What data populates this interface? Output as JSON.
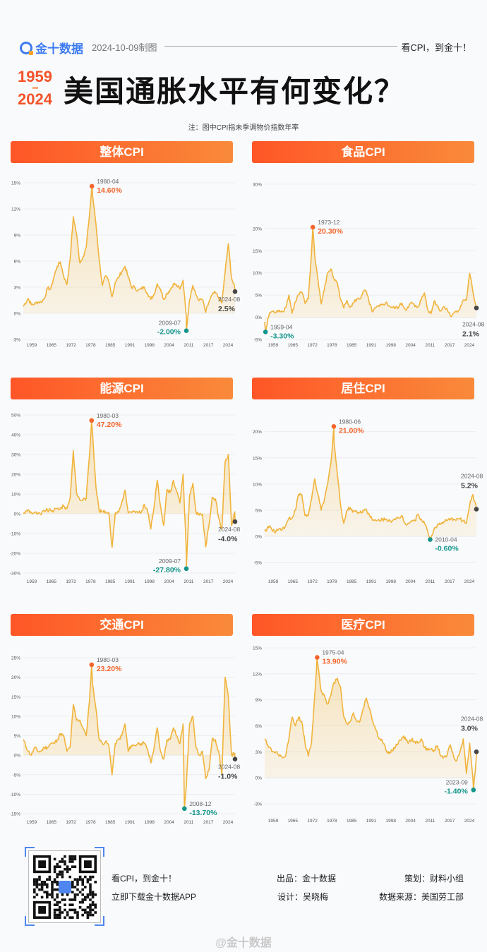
{
  "header": {
    "brand": "金十数据",
    "date": "2024-10-09制图",
    "slogan": "看CPI，到金十！"
  },
  "title": {
    "year_start": "1959",
    "year_end": "2024",
    "text": "美国通胀水平有何变化？",
    "note": "注：图中CPI指未季调物价指数年率"
  },
  "colors": {
    "line": "#f0b43c",
    "header_start": "#ff5627",
    "header_end": "#f98a3a",
    "max": "#f4652b",
    "min": "#13958a",
    "latest": "#444444",
    "brand": "#3d7bf0"
  },
  "chart_data": [
    {
      "title": "整体CPI",
      "type": "area",
      "x_ticks": [
        "1959",
        "1965",
        "1972",
        "1978",
        "1985",
        "1991",
        "1998",
        "2004",
        "2011",
        "2017",
        "2024"
      ],
      "y_ticks": [
        {
          "v": -3,
          "label": "-3%"
        },
        {
          "v": 0,
          "label": "0%"
        },
        {
          "v": 3,
          "label": "3%"
        },
        {
          "v": 6,
          "label": "6%"
        },
        {
          "v": 9,
          "label": "9%"
        },
        {
          "v": 12,
          "label": "12%"
        },
        {
          "v": 15,
          "label": "15%"
        }
      ],
      "ylim": [
        -3,
        15
      ],
      "grid": true,
      "x": [
        1959,
        1960,
        1961,
        1962,
        1963,
        1964,
        1965,
        1966,
        1967,
        1968,
        1969,
        1970,
        1971,
        1972,
        1973,
        1974,
        1975,
        1976,
        1977,
        1978,
        1979,
        1980,
        1981,
        1982,
        1983,
        1984,
        1985,
        1986,
        1987,
        1988,
        1989,
        1990,
        1991,
        1992,
        1993,
        1994,
        1995,
        1996,
        1997,
        1998,
        1999,
        2000,
        2001,
        2002,
        2003,
        2004,
        2005,
        2006,
        2007,
        2008,
        2009,
        2010,
        2011,
        2012,
        2013,
        2014,
        2015,
        2016,
        2017,
        2018,
        2019,
        2020,
        2021,
        2022,
        2023,
        2024
      ],
      "y": [
        0.8,
        1.7,
        1.0,
        1.1,
        1.3,
        1.3,
        1.7,
        2.9,
        2.8,
        4.2,
        5.4,
        5.9,
        4.3,
        3.3,
        6.2,
        11.1,
        9.1,
        5.8,
        6.5,
        7.6,
        11.3,
        13.5,
        10.3,
        6.2,
        3.2,
        4.3,
        3.6,
        1.9,
        3.6,
        4.1,
        4.8,
        5.4,
        4.2,
        3.0,
        3.0,
        2.6,
        2.8,
        3.0,
        2.3,
        1.6,
        2.2,
        3.4,
        2.8,
        1.6,
        2.3,
        2.7,
        3.4,
        3.2,
        2.8,
        3.8,
        -0.4,
        1.6,
        3.2,
        2.1,
        1.5,
        1.6,
        0.1,
        1.3,
        2.1,
        2.4,
        1.8,
        1.2,
        4.7,
        8.0,
        4.1,
        2.9
      ],
      "annotations": [
        {
          "kind": "max",
          "date": "1980-04",
          "value": 14.6,
          "text": "14.60%"
        },
        {
          "kind": "min",
          "date": "2009-07",
          "value": -2.0,
          "text": "-2.00%"
        },
        {
          "kind": "latest",
          "date": "2024-08",
          "value": 2.5,
          "text": "2.5%"
        }
      ]
    },
    {
      "title": "食品CPI",
      "type": "area",
      "x_ticks": [
        "1959",
        "1965",
        "1972",
        "1978",
        "1985",
        "1991",
        "1998",
        "2004",
        "2011",
        "2017",
        "2024"
      ],
      "y_ticks": [
        {
          "v": -5,
          "label": "-5%"
        },
        {
          "v": 0,
          "label": "0%"
        },
        {
          "v": 5,
          "label": "5%"
        },
        {
          "v": 10,
          "label": "10%"
        },
        {
          "v": 15,
          "label": "15%"
        },
        {
          "v": 20,
          "label": "20%"
        },
        {
          "v": 30,
          "label": "30%"
        }
      ],
      "ylim": [
        -5,
        30
      ],
      "grid": true,
      "x": [
        1959,
        1960,
        1961,
        1962,
        1963,
        1964,
        1965,
        1966,
        1967,
        1968,
        1969,
        1970,
        1971,
        1972,
        1973,
        1974,
        1975,
        1976,
        1977,
        1978,
        1979,
        1980,
        1981,
        1982,
        1983,
        1984,
        1985,
        1986,
        1987,
        1988,
        1989,
        1990,
        1991,
        1992,
        1993,
        1994,
        1995,
        1996,
        1997,
        1998,
        1999,
        2000,
        2001,
        2002,
        2003,
        2004,
        2005,
        2006,
        2007,
        2008,
        2009,
        2010,
        2011,
        2012,
        2013,
        2014,
        2015,
        2016,
        2017,
        2018,
        2019,
        2020,
        2021,
        2022,
        2023,
        2024
      ],
      "y": [
        -1.0,
        1.0,
        1.3,
        1.0,
        1.6,
        1.3,
        2.2,
        5.0,
        0.9,
        3.5,
        5.1,
        5.7,
        3.1,
        4.2,
        14.5,
        14.0,
        8.5,
        3.0,
        6.3,
        10.0,
        10.9,
        8.6,
        7.8,
        4.1,
        2.1,
        3.8,
        2.3,
        3.2,
        4.1,
        4.1,
        5.8,
        5.8,
        2.9,
        1.2,
        2.2,
        2.4,
        2.8,
        3.3,
        2.6,
        2.2,
        2.1,
        2.3,
        3.2,
        1.8,
        2.2,
        3.4,
        2.4,
        2.4,
        4.0,
        5.5,
        1.8,
        0.8,
        3.7,
        2.6,
        1.4,
        2.4,
        1.9,
        0.3,
        0.9,
        1.4,
        1.9,
        3.9,
        3.9,
        9.9,
        5.8,
        2.3
      ],
      "annotations": [
        {
          "kind": "max",
          "date": "1973-12",
          "value": 20.3,
          "text": "20.30%"
        },
        {
          "kind": "min",
          "date": "1959-04",
          "value": -3.3,
          "text": "-3.30%"
        },
        {
          "kind": "latest",
          "date": "2024-08",
          "value": 2.1,
          "text": "2.1%"
        }
      ]
    },
    {
      "title": "能源CPI",
      "type": "area",
      "x_ticks": [
        "1959",
        "1965",
        "1972",
        "1978",
        "1985",
        "1991",
        "1998",
        "2004",
        "2011",
        "2017",
        "2024"
      ],
      "y_ticks": [
        {
          "v": -30,
          "label": "-30%"
        },
        {
          "v": -20,
          "label": "-20%"
        },
        {
          "v": -10,
          "label": "-10%"
        },
        {
          "v": 0,
          "label": "0%"
        },
        {
          "v": 10,
          "label": "10%"
        },
        {
          "v": 20,
          "label": "20%"
        },
        {
          "v": 30,
          "label": "30%"
        },
        {
          "v": 40,
          "label": "40%"
        },
        {
          "v": 50,
          "label": "50%"
        }
      ],
      "ylim": [
        -30,
        50
      ],
      "grid": true,
      "x": [
        1959,
        1960,
        1961,
        1962,
        1963,
        1964,
        1965,
        1966,
        1967,
        1968,
        1969,
        1970,
        1971,
        1972,
        1973,
        1974,
        1975,
        1976,
        1977,
        1978,
        1979,
        1980,
        1981,
        1982,
        1983,
        1984,
        1985,
        1986,
        1987,
        1988,
        1989,
        1990,
        1991,
        1992,
        1993,
        1994,
        1995,
        1996,
        1997,
        1998,
        1999,
        2000,
        2001,
        2002,
        2003,
        2004,
        2005,
        2006,
        2007,
        2008,
        2009,
        2010,
        2011,
        2012,
        2013,
        2014,
        2015,
        2016,
        2017,
        2018,
        2019,
        2020,
        2021,
        2022,
        2023,
        2024
      ],
      "y": [
        0,
        2,
        0.5,
        0.5,
        0,
        -0.5,
        1.8,
        1.7,
        1.7,
        1.7,
        2.6,
        2.8,
        3.9,
        2.6,
        8,
        32,
        10.5,
        7,
        7.2,
        7.9,
        30,
        40,
        13.6,
        1.5,
        1,
        1,
        0.7,
        -17,
        0.5,
        0.8,
        5.6,
        12,
        0.4,
        0.5,
        1.2,
        0.4,
        0.6,
        4.7,
        1.3,
        -7.7,
        3.6,
        16.9,
        3.8,
        -5.9,
        12.2,
        10.9,
        16.9,
        11.2,
        5.5,
        20,
        -20,
        9.5,
        15.4,
        0.9,
        -0.7,
        -0.3,
        -16.7,
        -6,
        8.3,
        7.5,
        -2,
        -8,
        26,
        30,
        -6,
        1
      ],
      "annotations": [
        {
          "kind": "max",
          "date": "1980-03",
          "value": 47.2,
          "text": "47.20%"
        },
        {
          "kind": "min",
          "date": "2009-07",
          "value": -27.8,
          "text": "-27.80%"
        },
        {
          "kind": "latest",
          "date": "2024-08",
          "value": -4.0,
          "text": "-4.0%"
        }
      ]
    },
    {
      "title": "居住CPI",
      "type": "area",
      "x_ticks": [
        "1959",
        "1965",
        "1972",
        "1978",
        "1985",
        "1991",
        "1998",
        "2004",
        "2011",
        "2017",
        "2024"
      ],
      "y_ticks": [
        {
          "v": -5,
          "label": "-5%"
        },
        {
          "v": 0,
          "label": "0%"
        },
        {
          "v": 5,
          "label": "5%"
        },
        {
          "v": 10,
          "label": "10%"
        },
        {
          "v": 15,
          "label": "15%"
        },
        {
          "v": 20,
          "label": "20%"
        }
      ],
      "ylim": [
        -7,
        23.2
      ],
      "grid": true,
      "x": [
        1959,
        1960,
        1961,
        1962,
        1963,
        1964,
        1965,
        1966,
        1967,
        1968,
        1969,
        1970,
        1971,
        1972,
        1973,
        1974,
        1975,
        1976,
        1977,
        1978,
        1979,
        1980,
        1981,
        1982,
        1983,
        1984,
        1985,
        1986,
        1987,
        1988,
        1989,
        1990,
        1991,
        1992,
        1993,
        1994,
        1995,
        1996,
        1997,
        1998,
        1999,
        2000,
        2001,
        2002,
        2003,
        2004,
        2005,
        2006,
        2007,
        2008,
        2009,
        2010,
        2011,
        2012,
        2013,
        2014,
        2015,
        2016,
        2017,
        2018,
        2019,
        2020,
        2021,
        2022,
        2023,
        2024
      ],
      "y": [
        1,
        2,
        1,
        1,
        1.5,
        1.5,
        2,
        3.5,
        3.5,
        5,
        8,
        8,
        4,
        4,
        7,
        11,
        8,
        5,
        7,
        10,
        14,
        18,
        12,
        6,
        2.5,
        5,
        5.5,
        4.8,
        4.8,
        4.5,
        5,
        5.2,
        4,
        3,
        3,
        3.1,
        3.3,
        3.2,
        3.2,
        3,
        3.2,
        3.5,
        4,
        2.5,
        2.5,
        3,
        3,
        4.2,
        3.3,
        2.5,
        1,
        -0.4,
        1.5,
        2.2,
        2.3,
        2.8,
        3,
        3.2,
        3.3,
        3.4,
        3.3,
        3,
        2.5,
        6,
        8,
        5.6
      ],
      "annotations": [
        {
          "kind": "max",
          "date": "1980-06",
          "value": 21.0,
          "text": "21.00%"
        },
        {
          "kind": "min",
          "date": "2010-04",
          "value": -0.6,
          "text": "-0.60%"
        },
        {
          "kind": "latest",
          "date": "2024-08",
          "value": 5.2,
          "text": "5.2%"
        }
      ]
    },
    {
      "title": "交通CPI",
      "type": "area",
      "x_ticks": [
        "1959",
        "1965",
        "1972",
        "1978",
        "1985",
        "1991",
        "1998",
        "2004",
        "2011",
        "2017",
        "2024"
      ],
      "y_ticks": [
        {
          "v": -15,
          "label": "-15%"
        },
        {
          "v": -10,
          "label": "-10%"
        },
        {
          "v": -5,
          "label": "-5%"
        },
        {
          "v": 0,
          "label": "0%"
        },
        {
          "v": 5,
          "label": "5%"
        },
        {
          "v": 10,
          "label": "10%"
        },
        {
          "v": 15,
          "label": "15%"
        },
        {
          "v": 20,
          "label": "20%"
        },
        {
          "v": 25,
          "label": "25%"
        }
      ],
      "ylim": [
        -15,
        25
      ],
      "grid": true,
      "x": [
        1959,
        1960,
        1961,
        1962,
        1963,
        1964,
        1965,
        1966,
        1967,
        1968,
        1969,
        1970,
        1971,
        1972,
        1973,
        1974,
        1975,
        1976,
        1977,
        1978,
        1979,
        1980,
        1981,
        1982,
        1983,
        1984,
        1985,
        1986,
        1987,
        1988,
        1989,
        1990,
        1991,
        1992,
        1993,
        1994,
        1995,
        1996,
        1997,
        1998,
        1999,
        2000,
        2001,
        2002,
        2003,
        2004,
        2005,
        2006,
        2007,
        2008,
        2009,
        2010,
        2011,
        2012,
        2013,
        2014,
        2015,
        2016,
        2017,
        2018,
        2019,
        2020,
        2021,
        2022,
        2023,
        2024
      ],
      "y": [
        4,
        1,
        0,
        2,
        1,
        1,
        2,
        2,
        3,
        3,
        4,
        5.5,
        5,
        1,
        2,
        13,
        9,
        9,
        7,
        5,
        14,
        18,
        12,
        4,
        3,
        3.5,
        2.5,
        -5,
        3,
        4,
        5,
        8,
        1,
        2.5,
        2.5,
        3,
        3,
        3,
        1.5,
        -2,
        2,
        7,
        1,
        -1,
        4,
        4,
        7,
        5,
        3,
        8,
        -8,
        8,
        10,
        2,
        0,
        1,
        -6,
        -4,
        4,
        4,
        1,
        -5,
        20,
        15,
        0,
        0.5
      ],
      "annotations": [
        {
          "kind": "max",
          "date": "1980-03",
          "value": 23.2,
          "text": "23.20%"
        },
        {
          "kind": "min",
          "date": "2008-12",
          "value": -13.7,
          "text": "-13.70%"
        },
        {
          "kind": "latest",
          "date": "2024-08",
          "value": -1.0,
          "text": "-1.0%"
        }
      ]
    },
    {
      "title": "医疗CPI",
      "type": "area",
      "x_ticks": [
        "1959",
        "1965",
        "1972",
        "1978",
        "1985",
        "1991",
        "1998",
        "2004",
        "2011",
        "2017",
        "2024"
      ],
      "y_ticks": [
        {
          "v": -3,
          "label": "-3%"
        },
        {
          "v": 0,
          "label": "0%"
        },
        {
          "v": 3,
          "label": "3%"
        },
        {
          "v": 6,
          "label": "6%"
        },
        {
          "v": 9,
          "label": "9%"
        },
        {
          "v": 12,
          "label": "12%"
        },
        {
          "v": 15,
          "label": "15%"
        }
      ],
      "ylim": [
        -3,
        15
      ],
      "grid": true,
      "x": [
        1959,
        1960,
        1961,
        1962,
        1963,
        1964,
        1965,
        1966,
        1967,
        1968,
        1969,
        1970,
        1971,
        1972,
        1973,
        1974,
        1975,
        1976,
        1977,
        1978,
        1979,
        1980,
        1981,
        1982,
        1983,
        1984,
        1985,
        1986,
        1987,
        1988,
        1989,
        1990,
        1991,
        1992,
        1993,
        1994,
        1995,
        1996,
        1997,
        1998,
        1999,
        2000,
        2001,
        2002,
        2003,
        2004,
        2005,
        2006,
        2007,
        2008,
        2009,
        2010,
        2011,
        2012,
        2013,
        2014,
        2015,
        2016,
        2017,
        2018,
        2019,
        2020,
        2021,
        2022,
        2023,
        2024
      ],
      "y": [
        4.5,
        3.5,
        3,
        3,
        2.5,
        2.3,
        2.5,
        4.5,
        7,
        6,
        7,
        6.5,
        4,
        2.5,
        4,
        9.5,
        13,
        10,
        9.5,
        8.5,
        9.5,
        11,
        11.5,
        10.5,
        7,
        6.2,
        6.5,
        7.5,
        6.5,
        6.5,
        8,
        9.2,
        8,
        6.5,
        5.5,
        4.5,
        4.2,
        3.3,
        2.8,
        3.2,
        3.5,
        4.2,
        4.6,
        4.7,
        4,
        4.4,
        4.2,
        4,
        4.5,
        3.5,
        3.2,
        3.3,
        3.2,
        3.7,
        2.5,
        2.4,
        2.6,
        3.8,
        2.5,
        2,
        3,
        4.5,
        0.5,
        4,
        0,
        2
      ],
      "annotations": [
        {
          "kind": "max",
          "date": "1975-04",
          "value": 13.9,
          "text": "13.90%"
        },
        {
          "kind": "min",
          "date": "2023-09",
          "value": -1.4,
          "text": "-1.40%"
        },
        {
          "kind": "latest",
          "date": "2024-08",
          "value": 3.0,
          "text": "3.0%"
        }
      ]
    }
  ],
  "footer": {
    "slogan": "看CPI，到金十！",
    "download": "立即下载金十数据APP",
    "producer": "出品：金十数据",
    "planner": "策划：财料小组",
    "designer": "设计：吴晓梅",
    "source": "数据来源：美国劳工部",
    "weibo": "@金十数据"
  }
}
